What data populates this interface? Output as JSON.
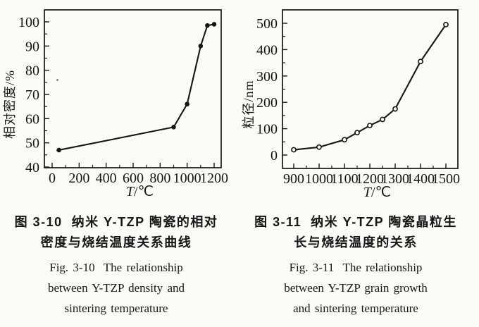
{
  "page": {
    "background": "#fcfbf7",
    "ink": "#161616"
  },
  "figures": [
    {
      "id": "fig-3-10",
      "caption": {
        "cn1": "图 3-10  纳米 Y-TZP 陶瓷的相对",
        "cn2": "密度与烧结温度关系曲线",
        "en1": "Fig. 3-10  The relationship",
        "en2": "between Y-TZP density and",
        "en3": "sintering temperature"
      }
    },
    {
      "id": "fig-3-11",
      "caption": {
        "cn1": "图 3-11  纳米 Y-TZP 陶瓷晶粒生",
        "cn2": "长与烧结温度的关系",
        "en1": "Fig. 3-11  The relationship",
        "en2": "between Y-TZP grain growth",
        "en3": "and sintering temperature"
      }
    }
  ],
  "chart_data": [
    {
      "type": "line",
      "title": "图 3-10 纳米 Y-TZP 陶瓷的相对密度与烧结温度关系曲线",
      "title_en": "Fig. 3-10 The relationship between Y-TZP density and sintering temperature",
      "xlabel": "T/℃",
      "ylabel": "相对密度/%",
      "xlim": [
        0,
        1200
      ],
      "ylim": [
        40,
        100
      ],
      "xticks": [
        0,
        200,
        400,
        600,
        800,
        1000,
        1200
      ],
      "yticks": [
        40,
        50,
        60,
        70,
        80,
        90,
        100
      ],
      "grid": false,
      "marker": "filled-circle",
      "series": [
        {
          "name": "相对密度",
          "x": [
            50,
            900,
            1000,
            1100,
            1150,
            1200
          ],
          "y": [
            47,
            56.5,
            66,
            90,
            98.5,
            99
          ]
        }
      ]
    },
    {
      "type": "line",
      "title": "图 3-11 纳米 Y-TZP 陶瓷晶粒生长与烧结温度的关系",
      "title_en": "Fig. 3-11 The relationship between Y-TZP grain growth and sintering temperature",
      "xlabel": "T/℃",
      "ylabel": "粒径/nm",
      "xlim": [
        900,
        1500
      ],
      "ylim": [
        0,
        500
      ],
      "xticks": [
        900,
        1000,
        1100,
        1200,
        1300,
        1400,
        1500
      ],
      "yticks": [
        0,
        100,
        200,
        300,
        400,
        500
      ],
      "grid": false,
      "marker": "open-circle",
      "series": [
        {
          "name": "粒径",
          "x": [
            900,
            1000,
            1100,
            1150,
            1200,
            1250,
            1300,
            1400,
            1500
          ],
          "y": [
            20,
            30,
            58,
            85,
            112,
            135,
            175,
            355,
            495
          ]
        }
      ]
    }
  ]
}
